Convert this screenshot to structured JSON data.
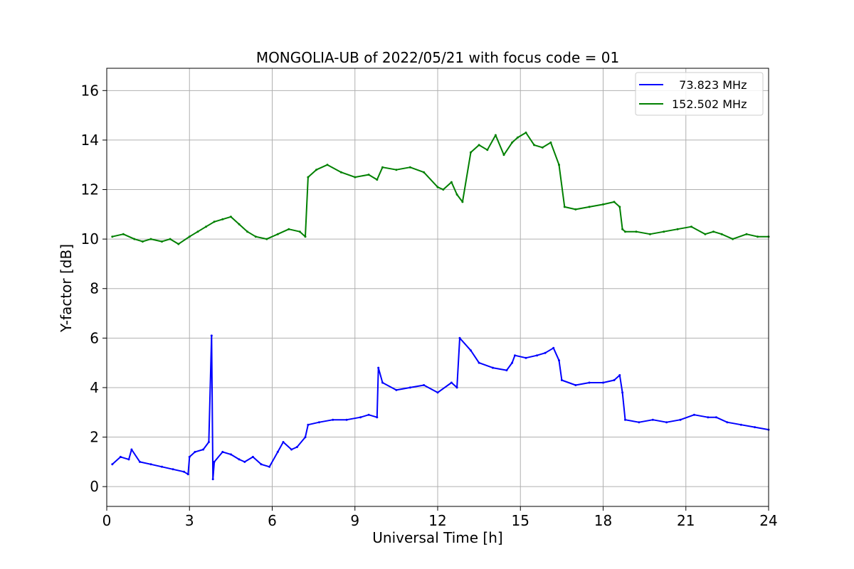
{
  "chart_data": {
    "type": "line",
    "title": "MONGOLIA-UB of 2022/05/21 with focus code = 01",
    "xlabel": "Universal Time [h]",
    "ylabel": "Y-factor [dB]",
    "xlim": [
      0,
      24
    ],
    "ylim": [
      -0.8,
      16.9
    ],
    "xticks": [
      0,
      3,
      6,
      9,
      12,
      15,
      18,
      21,
      24
    ],
    "yticks": [
      0,
      2,
      4,
      6,
      8,
      10,
      12,
      14,
      16
    ],
    "grid": true,
    "legend_position": "top-right",
    "series": [
      {
        "name": "  73.823 MHz",
        "color": "#0000ff",
        "x": [
          0.2,
          0.5,
          0.8,
          0.9,
          1.2,
          1.6,
          2.0,
          2.4,
          2.8,
          2.95,
          3.0,
          3.2,
          3.5,
          3.7,
          3.8,
          3.85,
          3.9,
          4.2,
          4.5,
          4.8,
          5.0,
          5.3,
          5.6,
          5.9,
          6.2,
          6.4,
          6.7,
          6.9,
          7.2,
          7.3,
          7.7,
          8.2,
          8.7,
          9.2,
          9.5,
          9.8,
          9.85,
          10.0,
          10.5,
          11.0,
          11.5,
          12.0,
          12.5,
          12.7,
          12.8,
          13.2,
          13.5,
          14.0,
          14.5,
          14.7,
          14.8,
          15.2,
          15.6,
          15.9,
          16.2,
          16.4,
          16.5,
          17.0,
          17.5,
          18.0,
          18.4,
          18.6,
          18.7,
          18.8,
          19.3,
          19.8,
          20.3,
          20.8,
          21.3,
          21.8,
          22.1,
          22.5,
          23.0,
          23.5,
          24.0
        ],
        "values": [
          0.9,
          1.2,
          1.1,
          1.5,
          1.0,
          0.9,
          0.8,
          0.7,
          0.6,
          0.5,
          1.2,
          1.4,
          1.5,
          1.8,
          6.1,
          0.3,
          1.0,
          1.4,
          1.3,
          1.1,
          1.0,
          1.2,
          0.9,
          0.8,
          1.4,
          1.8,
          1.5,
          1.6,
          2.0,
          2.5,
          2.6,
          2.7,
          2.7,
          2.8,
          2.9,
          2.8,
          4.8,
          4.2,
          3.9,
          4.0,
          4.1,
          3.8,
          4.2,
          4.0,
          6.0,
          5.5,
          5.0,
          4.8,
          4.7,
          5.0,
          5.3,
          5.2,
          5.3,
          5.4,
          5.6,
          5.1,
          4.3,
          4.1,
          4.2,
          4.2,
          4.3,
          4.5,
          3.8,
          2.7,
          2.6,
          2.7,
          2.6,
          2.7,
          2.9,
          2.8,
          2.8,
          2.6,
          2.5,
          2.4,
          2.3
        ]
      },
      {
        "name": "152.502 MHz",
        "color": "#008000",
        "x": [
          0.2,
          0.6,
          1.0,
          1.3,
          1.6,
          2.0,
          2.3,
          2.6,
          3.0,
          3.3,
          3.6,
          3.9,
          4.2,
          4.5,
          4.8,
          5.1,
          5.4,
          5.8,
          6.2,
          6.6,
          7.0,
          7.2,
          7.3,
          7.6,
          8.0,
          8.5,
          9.0,
          9.5,
          9.8,
          10.0,
          10.5,
          11.0,
          11.5,
          12.0,
          12.2,
          12.5,
          12.7,
          12.9,
          13.2,
          13.5,
          13.8,
          14.1,
          14.4,
          14.7,
          14.9,
          15.2,
          15.5,
          15.8,
          16.1,
          16.4,
          16.6,
          17.0,
          17.5,
          18.0,
          18.4,
          18.6,
          18.7,
          18.8,
          19.2,
          19.7,
          20.2,
          20.7,
          21.2,
          21.7,
          22.0,
          22.3,
          22.7,
          23.2,
          23.6,
          24.0
        ],
        "values": [
          10.1,
          10.2,
          10.0,
          9.9,
          10.0,
          9.9,
          10.0,
          9.8,
          10.1,
          10.3,
          10.5,
          10.7,
          10.8,
          10.9,
          10.6,
          10.3,
          10.1,
          10.0,
          10.2,
          10.4,
          10.3,
          10.1,
          12.5,
          12.8,
          13.0,
          12.7,
          12.5,
          12.6,
          12.4,
          12.9,
          12.8,
          12.9,
          12.7,
          12.1,
          12.0,
          12.3,
          11.8,
          11.5,
          13.5,
          13.8,
          13.6,
          14.2,
          13.4,
          13.9,
          14.1,
          14.3,
          13.8,
          13.7,
          13.9,
          13.0,
          11.3,
          11.2,
          11.3,
          11.4,
          11.5,
          11.3,
          10.4,
          10.3,
          10.3,
          10.2,
          10.3,
          10.4,
          10.5,
          10.2,
          10.3,
          10.2,
          10.0,
          10.2,
          10.1,
          10.1
        ]
      }
    ]
  }
}
